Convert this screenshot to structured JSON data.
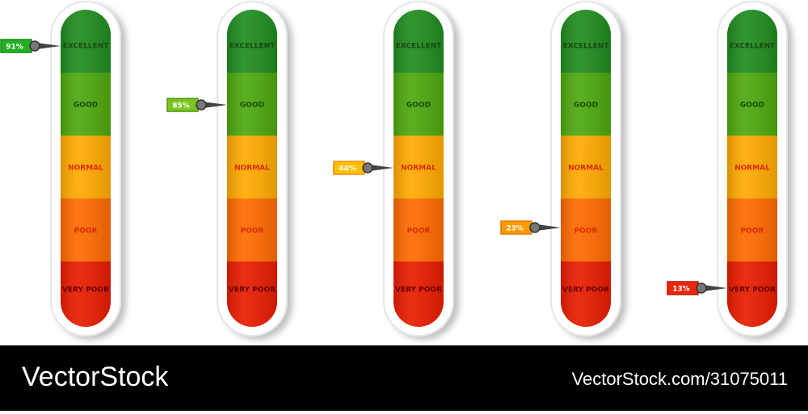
{
  "levels": [
    "EXCELLENT",
    "GOOD",
    "NORMAL",
    "POOR",
    "VERY POOR"
  ],
  "gauges": [
    {
      "label": "91%"
    },
    {
      "label": "85%"
    },
    {
      "label": "44%"
    },
    {
      "label": "23%"
    },
    {
      "label": "13%"
    }
  ],
  "footer": {
    "brand": "VectorStock",
    "id": "VectorStock.com/31075011"
  }
}
